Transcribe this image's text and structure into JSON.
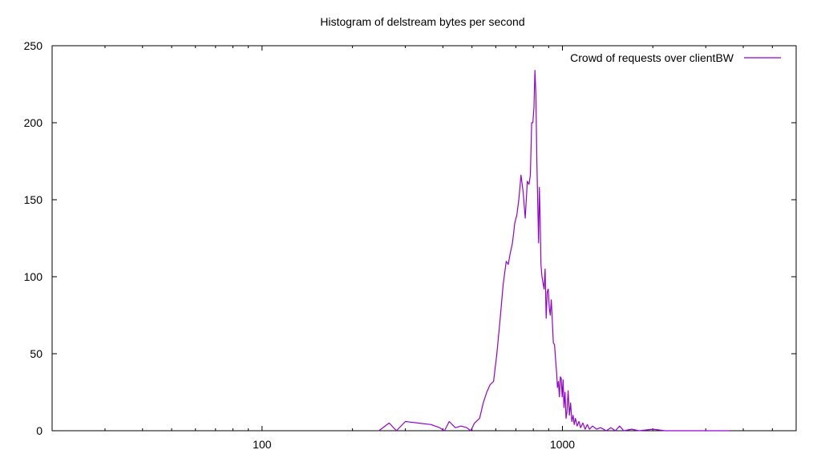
{
  "chart_data": {
    "type": "line",
    "title": "Histogram of delstream bytes per second",
    "xlabel": "",
    "ylabel": "",
    "x_scale": "log",
    "xlim": [
      20,
      6000
    ],
    "ylim": [
      0,
      250
    ],
    "x_ticks": [
      {
        "value": 100,
        "label": "100"
      },
      {
        "value": 1000,
        "label": "1000"
      }
    ],
    "y_ticks": [
      {
        "value": 0,
        "label": "0"
      },
      {
        "value": 50,
        "label": "50"
      },
      {
        "value": 100,
        "label": "100"
      },
      {
        "value": 150,
        "label": "150"
      },
      {
        "value": 200,
        "label": "200"
      },
      {
        "value": 250,
        "label": "250"
      }
    ],
    "grid": false,
    "legend_position": "top-right",
    "series": [
      {
        "name": "Crowd of requests over clientBW",
        "color": "#9400d3",
        "points": [
          [
            245,
            0
          ],
          [
            265,
            5
          ],
          [
            280,
            0
          ],
          [
            300,
            6
          ],
          [
            330,
            5
          ],
          [
            365,
            4
          ],
          [
            390,
            2
          ],
          [
            405,
            0
          ],
          [
            420,
            6
          ],
          [
            440,
            2
          ],
          [
            460,
            3
          ],
          [
            480,
            2
          ],
          [
            495,
            0
          ],
          [
            510,
            5
          ],
          [
            530,
            8
          ],
          [
            545,
            18
          ],
          [
            560,
            25
          ],
          [
            575,
            30
          ],
          [
            590,
            32
          ],
          [
            605,
            50
          ],
          [
            620,
            72
          ],
          [
            635,
            95
          ],
          [
            650,
            110
          ],
          [
            660,
            108
          ],
          [
            670,
            115
          ],
          [
            682,
            122
          ],
          [
            694,
            135
          ],
          [
            705,
            140
          ],
          [
            716,
            150
          ],
          [
            728,
            166
          ],
          [
            740,
            155
          ],
          [
            752,
            138
          ],
          [
            764,
            162
          ],
          [
            774,
            160
          ],
          [
            782,
            166
          ],
          [
            790,
            200
          ],
          [
            797,
            200
          ],
          [
            804,
            210
          ],
          [
            810,
            234
          ],
          [
            816,
            218
          ],
          [
            822,
            175
          ],
          [
            828,
            145
          ],
          [
            833,
            122
          ],
          [
            838,
            158
          ],
          [
            843,
            138
          ],
          [
            848,
            108
          ],
          [
            855,
            100
          ],
          [
            862,
            96
          ],
          [
            869,
            92
          ],
          [
            876,
            105
          ],
          [
            883,
            73
          ],
          [
            890,
            90
          ],
          [
            897,
            92
          ],
          [
            904,
            80
          ],
          [
            911,
            75
          ],
          [
            918,
            85
          ],
          [
            925,
            72
          ],
          [
            933,
            57
          ],
          [
            941,
            56
          ],
          [
            949,
            46
          ],
          [
            956,
            38
          ],
          [
            963,
            28
          ],
          [
            970,
            32
          ],
          [
            977,
            22
          ],
          [
            984,
            35
          ],
          [
            991,
            34
          ],
          [
            998,
            22
          ],
          [
            1005,
            33
          ],
          [
            1012,
            15
          ],
          [
            1020,
            25
          ],
          [
            1028,
            8
          ],
          [
            1035,
            12
          ],
          [
            1045,
            26
          ],
          [
            1055,
            10
          ],
          [
            1065,
            18
          ],
          [
            1075,
            6
          ],
          [
            1085,
            10
          ],
          [
            1095,
            4
          ],
          [
            1105,
            8
          ],
          [
            1120,
            3
          ],
          [
            1135,
            6
          ],
          [
            1150,
            2
          ],
          [
            1170,
            5
          ],
          [
            1190,
            1
          ],
          [
            1210,
            4
          ],
          [
            1230,
            1
          ],
          [
            1260,
            3
          ],
          [
            1300,
            1
          ],
          [
            1340,
            2
          ],
          [
            1400,
            0
          ],
          [
            1450,
            2
          ],
          [
            1500,
            0
          ],
          [
            1550,
            3
          ],
          [
            1600,
            0
          ],
          [
            1700,
            1
          ],
          [
            1800,
            0
          ],
          [
            2000,
            1
          ],
          [
            2200,
            0
          ],
          [
            2500,
            0
          ],
          [
            3000,
            0
          ],
          [
            3600,
            0
          ]
        ]
      }
    ]
  }
}
